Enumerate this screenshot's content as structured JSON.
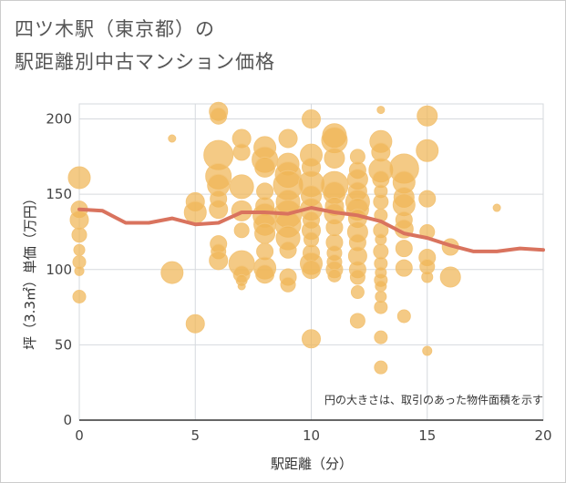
{
  "title_line1": "四ツ木駅（東京都）の",
  "title_line2": "駅距離別中古マンション価格",
  "chart_data": {
    "type": "scatter",
    "title": "四ツ木駅（東京都）の駅距離別中古マンション価格",
    "xlabel": "駅距離（分）",
    "ylabel": "坪（3.3㎡）単価（万円）",
    "xlim": [
      0,
      20
    ],
    "ylim": [
      0,
      210
    ],
    "xticks": [
      0,
      5,
      10,
      15,
      20
    ],
    "yticks": [
      0,
      50,
      100,
      150,
      200
    ],
    "grid": true,
    "annotation": "円の大きさは、取引のあった物件面積を示す",
    "bubble_color": "#f0b556",
    "line_color": "#d9735e",
    "bubbles": [
      {
        "x": 0,
        "y": 161,
        "s": 12
      },
      {
        "x": 0,
        "y": 140,
        "s": 9
      },
      {
        "x": 0,
        "y": 133,
        "s": 10
      },
      {
        "x": 0,
        "y": 123,
        "s": 8
      },
      {
        "x": 0,
        "y": 113,
        "s": 6
      },
      {
        "x": 0,
        "y": 105,
        "s": 7
      },
      {
        "x": 0,
        "y": 99,
        "s": 5
      },
      {
        "x": 0,
        "y": 82,
        "s": 7
      },
      {
        "x": 4,
        "y": 187,
        "s": 4
      },
      {
        "x": 4,
        "y": 98,
        "s": 12
      },
      {
        "x": 5,
        "y": 145,
        "s": 10
      },
      {
        "x": 5,
        "y": 138,
        "s": 12
      },
      {
        "x": 5,
        "y": 64,
        "s": 10
      },
      {
        "x": 6,
        "y": 205,
        "s": 10
      },
      {
        "x": 6,
        "y": 202,
        "s": 9
      },
      {
        "x": 6,
        "y": 176,
        "s": 16
      },
      {
        "x": 6,
        "y": 162,
        "s": 14
      },
      {
        "x": 6,
        "y": 156,
        "s": 12
      },
      {
        "x": 6,
        "y": 147,
        "s": 9
      },
      {
        "x": 6,
        "y": 140,
        "s": 10
      },
      {
        "x": 6,
        "y": 117,
        "s": 9
      },
      {
        "x": 6,
        "y": 112,
        "s": 8
      },
      {
        "x": 6,
        "y": 106,
        "s": 10
      },
      {
        "x": 7,
        "y": 187,
        "s": 10
      },
      {
        "x": 7,
        "y": 178,
        "s": 9
      },
      {
        "x": 7,
        "y": 155,
        "s": 13
      },
      {
        "x": 7,
        "y": 139,
        "s": 11
      },
      {
        "x": 7,
        "y": 126,
        "s": 8
      },
      {
        "x": 7,
        "y": 104,
        "s": 14
      },
      {
        "x": 7,
        "y": 97,
        "s": 9
      },
      {
        "x": 7,
        "y": 93,
        "s": 6
      },
      {
        "x": 7,
        "y": 89,
        "s": 4
      },
      {
        "x": 8,
        "y": 181,
        "s": 12
      },
      {
        "x": 8,
        "y": 173,
        "s": 14
      },
      {
        "x": 8,
        "y": 168,
        "s": 11
      },
      {
        "x": 8,
        "y": 152,
        "s": 9
      },
      {
        "x": 8,
        "y": 142,
        "s": 10
      },
      {
        "x": 8,
        "y": 136,
        "s": 13
      },
      {
        "x": 8,
        "y": 130,
        "s": 12
      },
      {
        "x": 8,
        "y": 124,
        "s": 11
      },
      {
        "x": 8,
        "y": 112,
        "s": 9
      },
      {
        "x": 8,
        "y": 101,
        "s": 12
      },
      {
        "x": 8,
        "y": 97,
        "s": 10
      },
      {
        "x": 9,
        "y": 187,
        "s": 10
      },
      {
        "x": 9,
        "y": 170,
        "s": 12
      },
      {
        "x": 9,
        "y": 163,
        "s": 14
      },
      {
        "x": 9,
        "y": 156,
        "s": 16
      },
      {
        "x": 9,
        "y": 145,
        "s": 13
      },
      {
        "x": 9,
        "y": 137,
        "s": 15
      },
      {
        "x": 9,
        "y": 130,
        "s": 14
      },
      {
        "x": 9,
        "y": 121,
        "s": 13
      },
      {
        "x": 9,
        "y": 113,
        "s": 9
      },
      {
        "x": 9,
        "y": 95,
        "s": 9
      },
      {
        "x": 9,
        "y": 90,
        "s": 8
      },
      {
        "x": 10,
        "y": 200,
        "s": 10
      },
      {
        "x": 10,
        "y": 176,
        "s": 12
      },
      {
        "x": 10,
        "y": 168,
        "s": 10
      },
      {
        "x": 10,
        "y": 157,
        "s": 14
      },
      {
        "x": 10,
        "y": 149,
        "s": 11
      },
      {
        "x": 10,
        "y": 140,
        "s": 12
      },
      {
        "x": 10,
        "y": 133,
        "s": 9
      },
      {
        "x": 10,
        "y": 126,
        "s": 10
      },
      {
        "x": 10,
        "y": 120,
        "s": 8
      },
      {
        "x": 10,
        "y": 111,
        "s": 9
      },
      {
        "x": 10,
        "y": 104,
        "s": 12
      },
      {
        "x": 10,
        "y": 100,
        "s": 10
      },
      {
        "x": 10,
        "y": 54,
        "s": 10
      },
      {
        "x": 11,
        "y": 189,
        "s": 13
      },
      {
        "x": 11,
        "y": 186,
        "s": 14
      },
      {
        "x": 11,
        "y": 174,
        "s": 11
      },
      {
        "x": 11,
        "y": 156,
        "s": 15
      },
      {
        "x": 11,
        "y": 151,
        "s": 12
      },
      {
        "x": 11,
        "y": 142,
        "s": 10
      },
      {
        "x": 11,
        "y": 137,
        "s": 11
      },
      {
        "x": 11,
        "y": 128,
        "s": 9
      },
      {
        "x": 11,
        "y": 118,
        "s": 9
      },
      {
        "x": 11,
        "y": 111,
        "s": 8
      },
      {
        "x": 11,
        "y": 105,
        "s": 8
      },
      {
        "x": 11,
        "y": 100,
        "s": 9
      },
      {
        "x": 11,
        "y": 96,
        "s": 7
      },
      {
        "x": 12,
        "y": 175,
        "s": 8
      },
      {
        "x": 12,
        "y": 166,
        "s": 9
      },
      {
        "x": 12,
        "y": 160,
        "s": 11
      },
      {
        "x": 12,
        "y": 152,
        "s": 10
      },
      {
        "x": 12,
        "y": 145,
        "s": 13
      },
      {
        "x": 12,
        "y": 140,
        "s": 12
      },
      {
        "x": 12,
        "y": 134,
        "s": 10
      },
      {
        "x": 12,
        "y": 125,
        "s": 11
      },
      {
        "x": 12,
        "y": 118,
        "s": 9
      },
      {
        "x": 12,
        "y": 109,
        "s": 10
      },
      {
        "x": 12,
        "y": 100,
        "s": 9
      },
      {
        "x": 12,
        "y": 95,
        "s": 8
      },
      {
        "x": 12,
        "y": 85,
        "s": 7
      },
      {
        "x": 12,
        "y": 66,
        "s": 8
      },
      {
        "x": 13,
        "y": 206,
        "s": 4
      },
      {
        "x": 13,
        "y": 185,
        "s": 12
      },
      {
        "x": 13,
        "y": 178,
        "s": 10
      },
      {
        "x": 13,
        "y": 166,
        "s": 13
      },
      {
        "x": 13,
        "y": 160,
        "s": 9
      },
      {
        "x": 13,
        "y": 152,
        "s": 7
      },
      {
        "x": 13,
        "y": 145,
        "s": 8
      },
      {
        "x": 13,
        "y": 136,
        "s": 7
      },
      {
        "x": 13,
        "y": 126,
        "s": 8
      },
      {
        "x": 13,
        "y": 120,
        "s": 6
      },
      {
        "x": 13,
        "y": 112,
        "s": 8
      },
      {
        "x": 13,
        "y": 104,
        "s": 7
      },
      {
        "x": 13,
        "y": 98,
        "s": 6
      },
      {
        "x": 13,
        "y": 93,
        "s": 7
      },
      {
        "x": 13,
        "y": 89,
        "s": 6
      },
      {
        "x": 13,
        "y": 82,
        "s": 6
      },
      {
        "x": 13,
        "y": 75,
        "s": 7
      },
      {
        "x": 13,
        "y": 55,
        "s": 7
      },
      {
        "x": 13,
        "y": 35,
        "s": 7
      },
      {
        "x": 14,
        "y": 167,
        "s": 16
      },
      {
        "x": 14,
        "y": 158,
        "s": 12
      },
      {
        "x": 14,
        "y": 148,
        "s": 11
      },
      {
        "x": 14,
        "y": 143,
        "s": 12
      },
      {
        "x": 14,
        "y": 133,
        "s": 9
      },
      {
        "x": 14,
        "y": 127,
        "s": 10
      },
      {
        "x": 14,
        "y": 114,
        "s": 9
      },
      {
        "x": 14,
        "y": 101,
        "s": 9
      },
      {
        "x": 14,
        "y": 69,
        "s": 7
      },
      {
        "x": 15,
        "y": 202,
        "s": 11
      },
      {
        "x": 15,
        "y": 179,
        "s": 12
      },
      {
        "x": 15,
        "y": 147,
        "s": 9
      },
      {
        "x": 15,
        "y": 125,
        "s": 8
      },
      {
        "x": 15,
        "y": 108,
        "s": 9
      },
      {
        "x": 15,
        "y": 102,
        "s": 8
      },
      {
        "x": 15,
        "y": 95,
        "s": 6
      },
      {
        "x": 15,
        "y": 46,
        "s": 5
      },
      {
        "x": 16,
        "y": 115,
        "s": 9
      },
      {
        "x": 16,
        "y": 95,
        "s": 11
      },
      {
        "x": 18,
        "y": 141,
        "s": 4
      }
    ],
    "line": [
      {
        "x": 0,
        "y": 140
      },
      {
        "x": 1,
        "y": 139
      },
      {
        "x": 2,
        "y": 131
      },
      {
        "x": 3,
        "y": 131
      },
      {
        "x": 4,
        "y": 134
      },
      {
        "x": 5,
        "y": 130
      },
      {
        "x": 6,
        "y": 131
      },
      {
        "x": 7,
        "y": 138
      },
      {
        "x": 8,
        "y": 138
      },
      {
        "x": 9,
        "y": 137
      },
      {
        "x": 10,
        "y": 141
      },
      {
        "x": 11,
        "y": 138
      },
      {
        "x": 12,
        "y": 136
      },
      {
        "x": 13,
        "y": 132
      },
      {
        "x": 14,
        "y": 124
      },
      {
        "x": 15,
        "y": 121
      },
      {
        "x": 16,
        "y": 116
      },
      {
        "x": 17,
        "y": 112
      },
      {
        "x": 18,
        "y": 112
      },
      {
        "x": 19,
        "y": 114
      },
      {
        "x": 20,
        "y": 113
      }
    ]
  }
}
